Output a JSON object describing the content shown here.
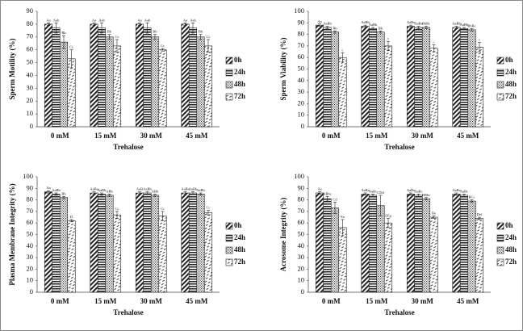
{
  "chart_data": [
    {
      "type": "bar",
      "x_label": "Trehalose",
      "y_label": "Sperm Motility (%)",
      "categories": [
        "0 mM",
        "15 mM",
        "30 mM",
        "45 mM"
      ],
      "ylim": [
        0,
        90
      ],
      "yticks": [
        0,
        10,
        20,
        30,
        40,
        50,
        60,
        70,
        80,
        90
      ],
      "grid": false,
      "legend": "right",
      "series": [
        {
          "name": "0h",
          "pattern": "diagonal",
          "values": [
            80,
            80,
            80,
            80
          ],
          "errors": [
            1,
            1,
            1,
            1
          ],
          "letters": [
            "Aa",
            "Aa",
            "Aa",
            "Aa"
          ]
        },
        {
          "name": "24h",
          "pattern": "horizontal",
          "values": [
            77,
            77,
            77,
            77
          ],
          "errors": [
            4,
            4,
            4,
            4
          ],
          "letters": [
            "Aab",
            "Aab",
            "Aab",
            "Aab"
          ]
        },
        {
          "name": "48h",
          "pattern": "dots",
          "values": [
            66,
            70,
            70,
            70
          ],
          "errors": [
            5,
            2,
            2,
            2
          ],
          "letters": [
            "Bb",
            "Bb",
            "Bb",
            "Bb"
          ]
        },
        {
          "name": "72h",
          "pattern": "dashes",
          "values": [
            53,
            63,
            60,
            63
          ],
          "errors": [
            7,
            5,
            1,
            5
          ],
          "letters": [
            "Cc",
            "Cc",
            "Cc",
            "Cc"
          ]
        }
      ]
    },
    {
      "type": "bar",
      "x_label": "Trehalose",
      "y_label": "Sperm Viability (%)",
      "categories": [
        "0 mM",
        "15 mM",
        "30 mM",
        "45 mM"
      ],
      "ylim": [
        0,
        100
      ],
      "yticks": [
        0,
        10,
        20,
        30,
        40,
        50,
        60,
        70,
        80,
        90,
        100
      ],
      "grid": false,
      "legend": "right",
      "series": [
        {
          "name": "0h",
          "pattern": "diagonal",
          "values": [
            88,
            87,
            87,
            86
          ],
          "errors": [
            1,
            1,
            1,
            1
          ],
          "letters": [
            "Aa",
            "AaBb",
            "AaBa",
            "AaBb"
          ]
        },
        {
          "name": "24h",
          "pattern": "horizontal",
          "values": [
            86,
            85,
            86,
            85
          ],
          "errors": [
            1,
            1,
            1,
            1
          ],
          "letters": [
            "AaBb",
            "AaBb",
            "AaBa",
            "AaBb"
          ]
        },
        {
          "name": "48h",
          "pattern": "dots",
          "values": [
            82,
            82,
            86,
            84
          ],
          "errors": [
            1,
            1,
            1,
            1
          ],
          "letters": [
            "Bb",
            "Bb",
            "BbBc",
            "BbBc"
          ]
        },
        {
          "name": "72h",
          "pattern": "dashes",
          "values": [
            60,
            70,
            68,
            69
          ],
          "errors": [
            4,
            4,
            3,
            4
          ],
          "letters": [
            "c",
            "c",
            "c",
            "c"
          ]
        }
      ]
    },
    {
      "type": "bar",
      "x_label": "Trehalose",
      "y_label": "Plasma Membrane Integrity (%)",
      "categories": [
        "0 mM",
        "15 mM",
        "30 mM",
        "45 mM"
      ],
      "ylim": [
        0,
        100
      ],
      "yticks": [
        0,
        10,
        20,
        30,
        40,
        50,
        60,
        70,
        80,
        90,
        100
      ],
      "grid": false,
      "legend": "right",
      "series": [
        {
          "name": "0h",
          "pattern": "diagonal",
          "values": [
            87,
            86,
            86,
            86
          ],
          "errors": [
            1,
            1,
            1,
            1
          ],
          "letters": [
            "Aa",
            "AaBa",
            "AaB",
            "AaBa"
          ]
        },
        {
          "name": "24h",
          "pattern": "horizontal",
          "values": [
            85,
            85,
            86,
            86
          ],
          "errors": [
            1,
            1,
            1,
            1
          ],
          "letters": [
            "AaBb",
            "AaBb",
            "AaBb",
            "AaBb"
          ]
        },
        {
          "name": "48h",
          "pattern": "dots",
          "values": [
            82,
            84,
            84,
            85
          ],
          "errors": [
            1,
            1,
            1,
            1
          ],
          "letters": [
            "Bb",
            "ABb",
            "ABb",
            "AaBb"
          ]
        },
        {
          "name": "72h",
          "pattern": "dashes",
          "values": [
            62,
            67,
            66,
            69
          ],
          "errors": [
            1,
            3,
            4,
            2
          ],
          "letters": [
            "D",
            "Cc",
            "Cc",
            "Cc"
          ]
        }
      ]
    },
    {
      "type": "bar",
      "x_label": "Trehalose",
      "y_label": "Acrosome Integrity (%)",
      "categories": [
        "0 mM",
        "15 mM",
        "30 mM",
        "45 mM"
      ],
      "ylim": [
        0,
        100
      ],
      "yticks": [
        0,
        10,
        20,
        30,
        40,
        50,
        60,
        70,
        80,
        90,
        100
      ],
      "grid": false,
      "legend": "right",
      "series": [
        {
          "name": "0h",
          "pattern": "diagonal",
          "values": [
            86,
            85,
            85,
            85
          ],
          "errors": [
            1,
            1,
            1,
            1
          ],
          "letters": [
            "Aa",
            "AaBa",
            "AaBa",
            "AaBa"
          ]
        },
        {
          "name": "24h",
          "pattern": "horizontal",
          "values": [
            81,
            84,
            84,
            84
          ],
          "errors": [
            2,
            1,
            1,
            1
          ],
          "letters": [
            "ABbc",
            "AaBc",
            "AaBc",
            "AaBc"
          ]
        },
        {
          "name": "48h",
          "pattern": "dots",
          "values": [
            73,
            75,
            81,
            79
          ],
          "errors": [
            5,
            9,
            1,
            1
          ],
          "letters": [
            "Cd",
            "CDd",
            "BBbc",
            "BCc"
          ]
        },
        {
          "name": "72h",
          "pattern": "dashes",
          "values": [
            56,
            60,
            65,
            64
          ],
          "errors": [
            7,
            4,
            1,
            1
          ],
          "letters": [
            "Ee",
            "EFg",
            "De",
            "Def"
          ]
        }
      ]
    }
  ]
}
